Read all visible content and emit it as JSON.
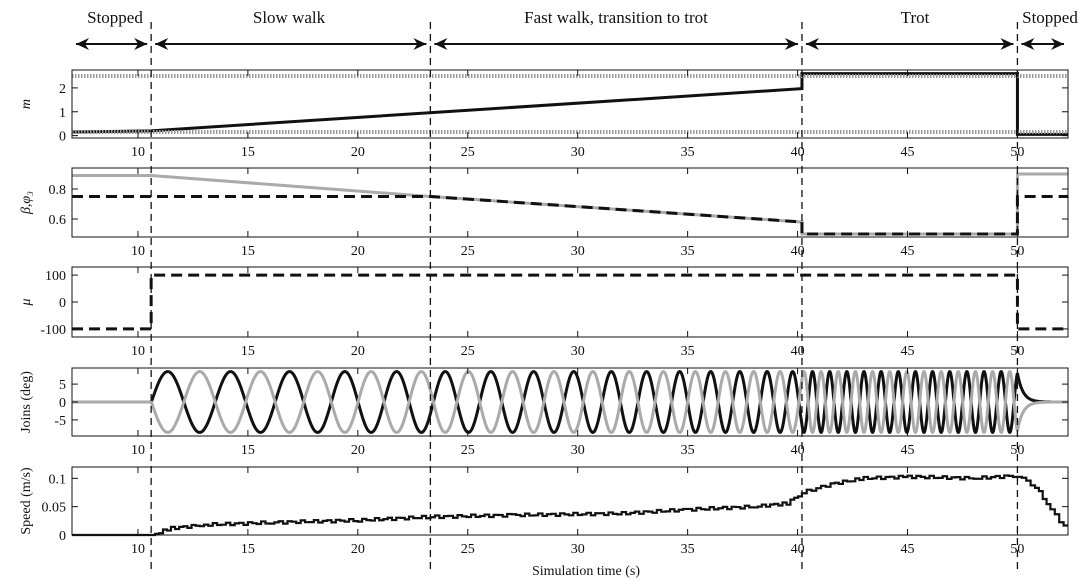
{
  "phases": [
    "Stopped",
    "Slow walk",
    "Fast walk, transition to trot",
    "Trot",
    "Stopped"
  ],
  "phase_boundaries": [
    10.6,
    23.3,
    40.2,
    50.0
  ],
  "chart_data": [
    {
      "type": "line",
      "ylabel": "m",
      "xlim": [
        7,
        52.3
      ],
      "ylim": [
        -0.1,
        2.75
      ],
      "yticks": [
        "0",
        "1",
        "2"
      ],
      "xticks": [
        "10",
        "15",
        "20",
        "25",
        "30",
        "35",
        "40",
        "45",
        "50"
      ],
      "grid": false,
      "series": [
        {
          "values_x": [
            7,
            10.6,
            40.2,
            40.2,
            50.0,
            50.0,
            52.3
          ],
          "values_y": [
            0.15,
            0.2,
            1.97,
            2.6,
            2.6,
            0.05,
            0.05
          ],
          "color": "#111111",
          "style": "solid"
        },
        {
          "values_x": [
            7,
            52.3
          ],
          "values_y": [
            2.5,
            2.5
          ],
          "color": "#999999",
          "style": "band"
        },
        {
          "values_x": [
            7,
            52.3
          ],
          "values_y": [
            0.15,
            0.15
          ],
          "color": "#999999",
          "style": "band"
        }
      ]
    },
    {
      "type": "line",
      "ylabel": "β,φ₃",
      "xlim": [
        7,
        52.3
      ],
      "ylim": [
        0.48,
        0.94
      ],
      "yticks": [
        "0.6",
        "0.8"
      ],
      "xticks": [
        "10",
        "15",
        "20",
        "25",
        "30",
        "35",
        "40",
        "45",
        "50"
      ],
      "grid": false,
      "series": [
        {
          "values_x": [
            7,
            10.6,
            23.3,
            40.2,
            40.2,
            50.0,
            50.0,
            52.3
          ],
          "values_y": [
            0.89,
            0.89,
            0.75,
            0.58,
            0.5,
            0.5,
            0.9,
            0.9
          ],
          "color": "#aaaaaa",
          "style": "solid"
        },
        {
          "values_x": [
            7,
            10.6,
            23.3,
            40.2,
            40.2,
            50.0,
            50.0,
            52.3
          ],
          "values_y": [
            0.75,
            0.75,
            0.75,
            0.58,
            0.5,
            0.5,
            0.75,
            0.75
          ],
          "color": "#111111",
          "style": "dashed"
        }
      ]
    },
    {
      "type": "line",
      "ylabel": "μ",
      "xlim": [
        7,
        52.3
      ],
      "ylim": [
        -130,
        130
      ],
      "yticks": [
        "-100",
        "0",
        "100"
      ],
      "xticks": [
        "10",
        "15",
        "20",
        "25",
        "30",
        "35",
        "40",
        "45",
        "50"
      ],
      "grid": false,
      "series": [
        {
          "values_x": [
            7,
            10.6,
            10.6,
            50.0,
            50.0,
            52.3
          ],
          "values_y": [
            -100,
            -100,
            100,
            100,
            -100,
            -100
          ],
          "color": "#111111",
          "style": "dashed"
        }
      ]
    },
    {
      "type": "line",
      "ylabel": "Joins (deg)",
      "xlim": [
        7,
        52.3
      ],
      "ylim": [
        -9.5,
        9.5
      ],
      "yticks": [
        "-5",
        "0",
        "5"
      ],
      "xticks": [
        "10",
        "15",
        "20",
        "25",
        "30",
        "35",
        "40",
        "45",
        "50"
      ],
      "grid": false,
      "amplitude": 8.5,
      "period_start_s": 3.0,
      "period_walk_end_s": 1.1,
      "period_trot_s": 0.78,
      "series": [
        {
          "name": "",
          "color": "#111111",
          "phase": 0.0
        },
        {
          "name": "",
          "color": "#aaaaaa",
          "phase": 0.5
        }
      ]
    },
    {
      "type": "line",
      "ylabel": "Speed (m/s)",
      "xlabel": "Simulation time (s)",
      "xlim": [
        7,
        52.3
      ],
      "ylim": [
        0,
        0.12
      ],
      "yticks": [
        "0",
        "0.05",
        "0.1"
      ],
      "xticks": [
        "10",
        "15",
        "20",
        "25",
        "30",
        "35",
        "40",
        "45",
        "50"
      ],
      "grid": false,
      "series": [
        {
          "values_x": [
            7,
            10.6,
            11.5,
            13,
            16,
            20,
            23.3,
            27,
            32,
            35,
            38,
            39.5,
            40.2,
            41.5,
            43,
            45,
            48,
            50,
            50.8,
            51.5,
            52.3
          ],
          "values_y": [
            0,
            0,
            0.012,
            0.018,
            0.022,
            0.026,
            0.032,
            0.035,
            0.038,
            0.045,
            0.05,
            0.056,
            0.075,
            0.09,
            0.1,
            0.103,
            0.1,
            0.105,
            0.085,
            0.045,
            0.005
          ],
          "color": "#111111",
          "style": "stairs"
        }
      ]
    }
  ]
}
